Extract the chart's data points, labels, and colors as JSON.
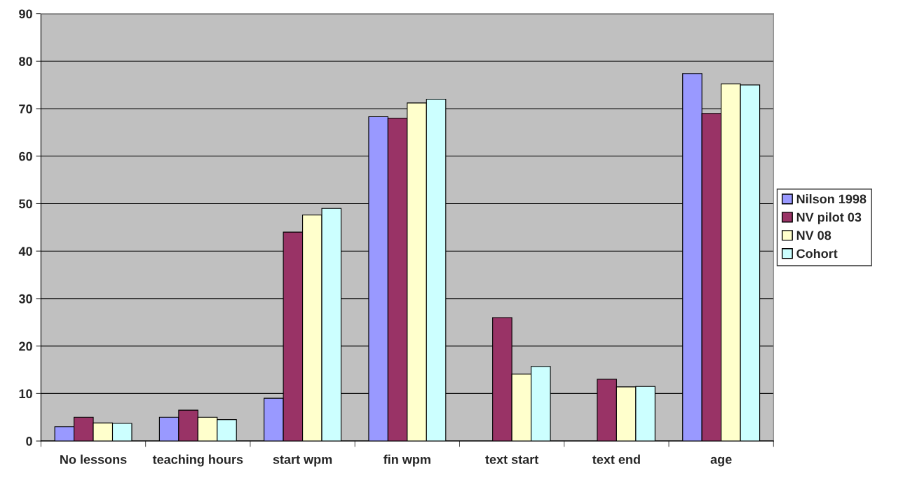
{
  "chart_data": {
    "type": "bar",
    "categories": [
      "No lessons",
      "teaching hours",
      "start wpm",
      "fin wpm",
      "text start",
      "text end",
      "age"
    ],
    "series": [
      {
        "name": "Nilson 1998",
        "color": "#9999ff",
        "values": [
          3,
          5,
          9,
          68.3,
          null,
          null,
          77.4
        ]
      },
      {
        "name": "NV pilot 03",
        "color": "#993366",
        "values": [
          5,
          6.5,
          44,
          68,
          26,
          13,
          69
        ]
      },
      {
        "name": "NV 08",
        "color": "#ffffcc",
        "values": [
          3.8,
          5,
          47.6,
          71.2,
          14.1,
          11.4,
          75.2
        ]
      },
      {
        "name": "Cohort",
        "color": "#ccffff",
        "values": [
          3.7,
          4.5,
          49,
          72,
          15.7,
          11.5,
          75
        ]
      }
    ],
    "ylim": [
      0,
      90
    ],
    "yticks": [
      0,
      10,
      20,
      30,
      40,
      50,
      60,
      70,
      80,
      90
    ],
    "grid": "y",
    "legend": "right"
  }
}
